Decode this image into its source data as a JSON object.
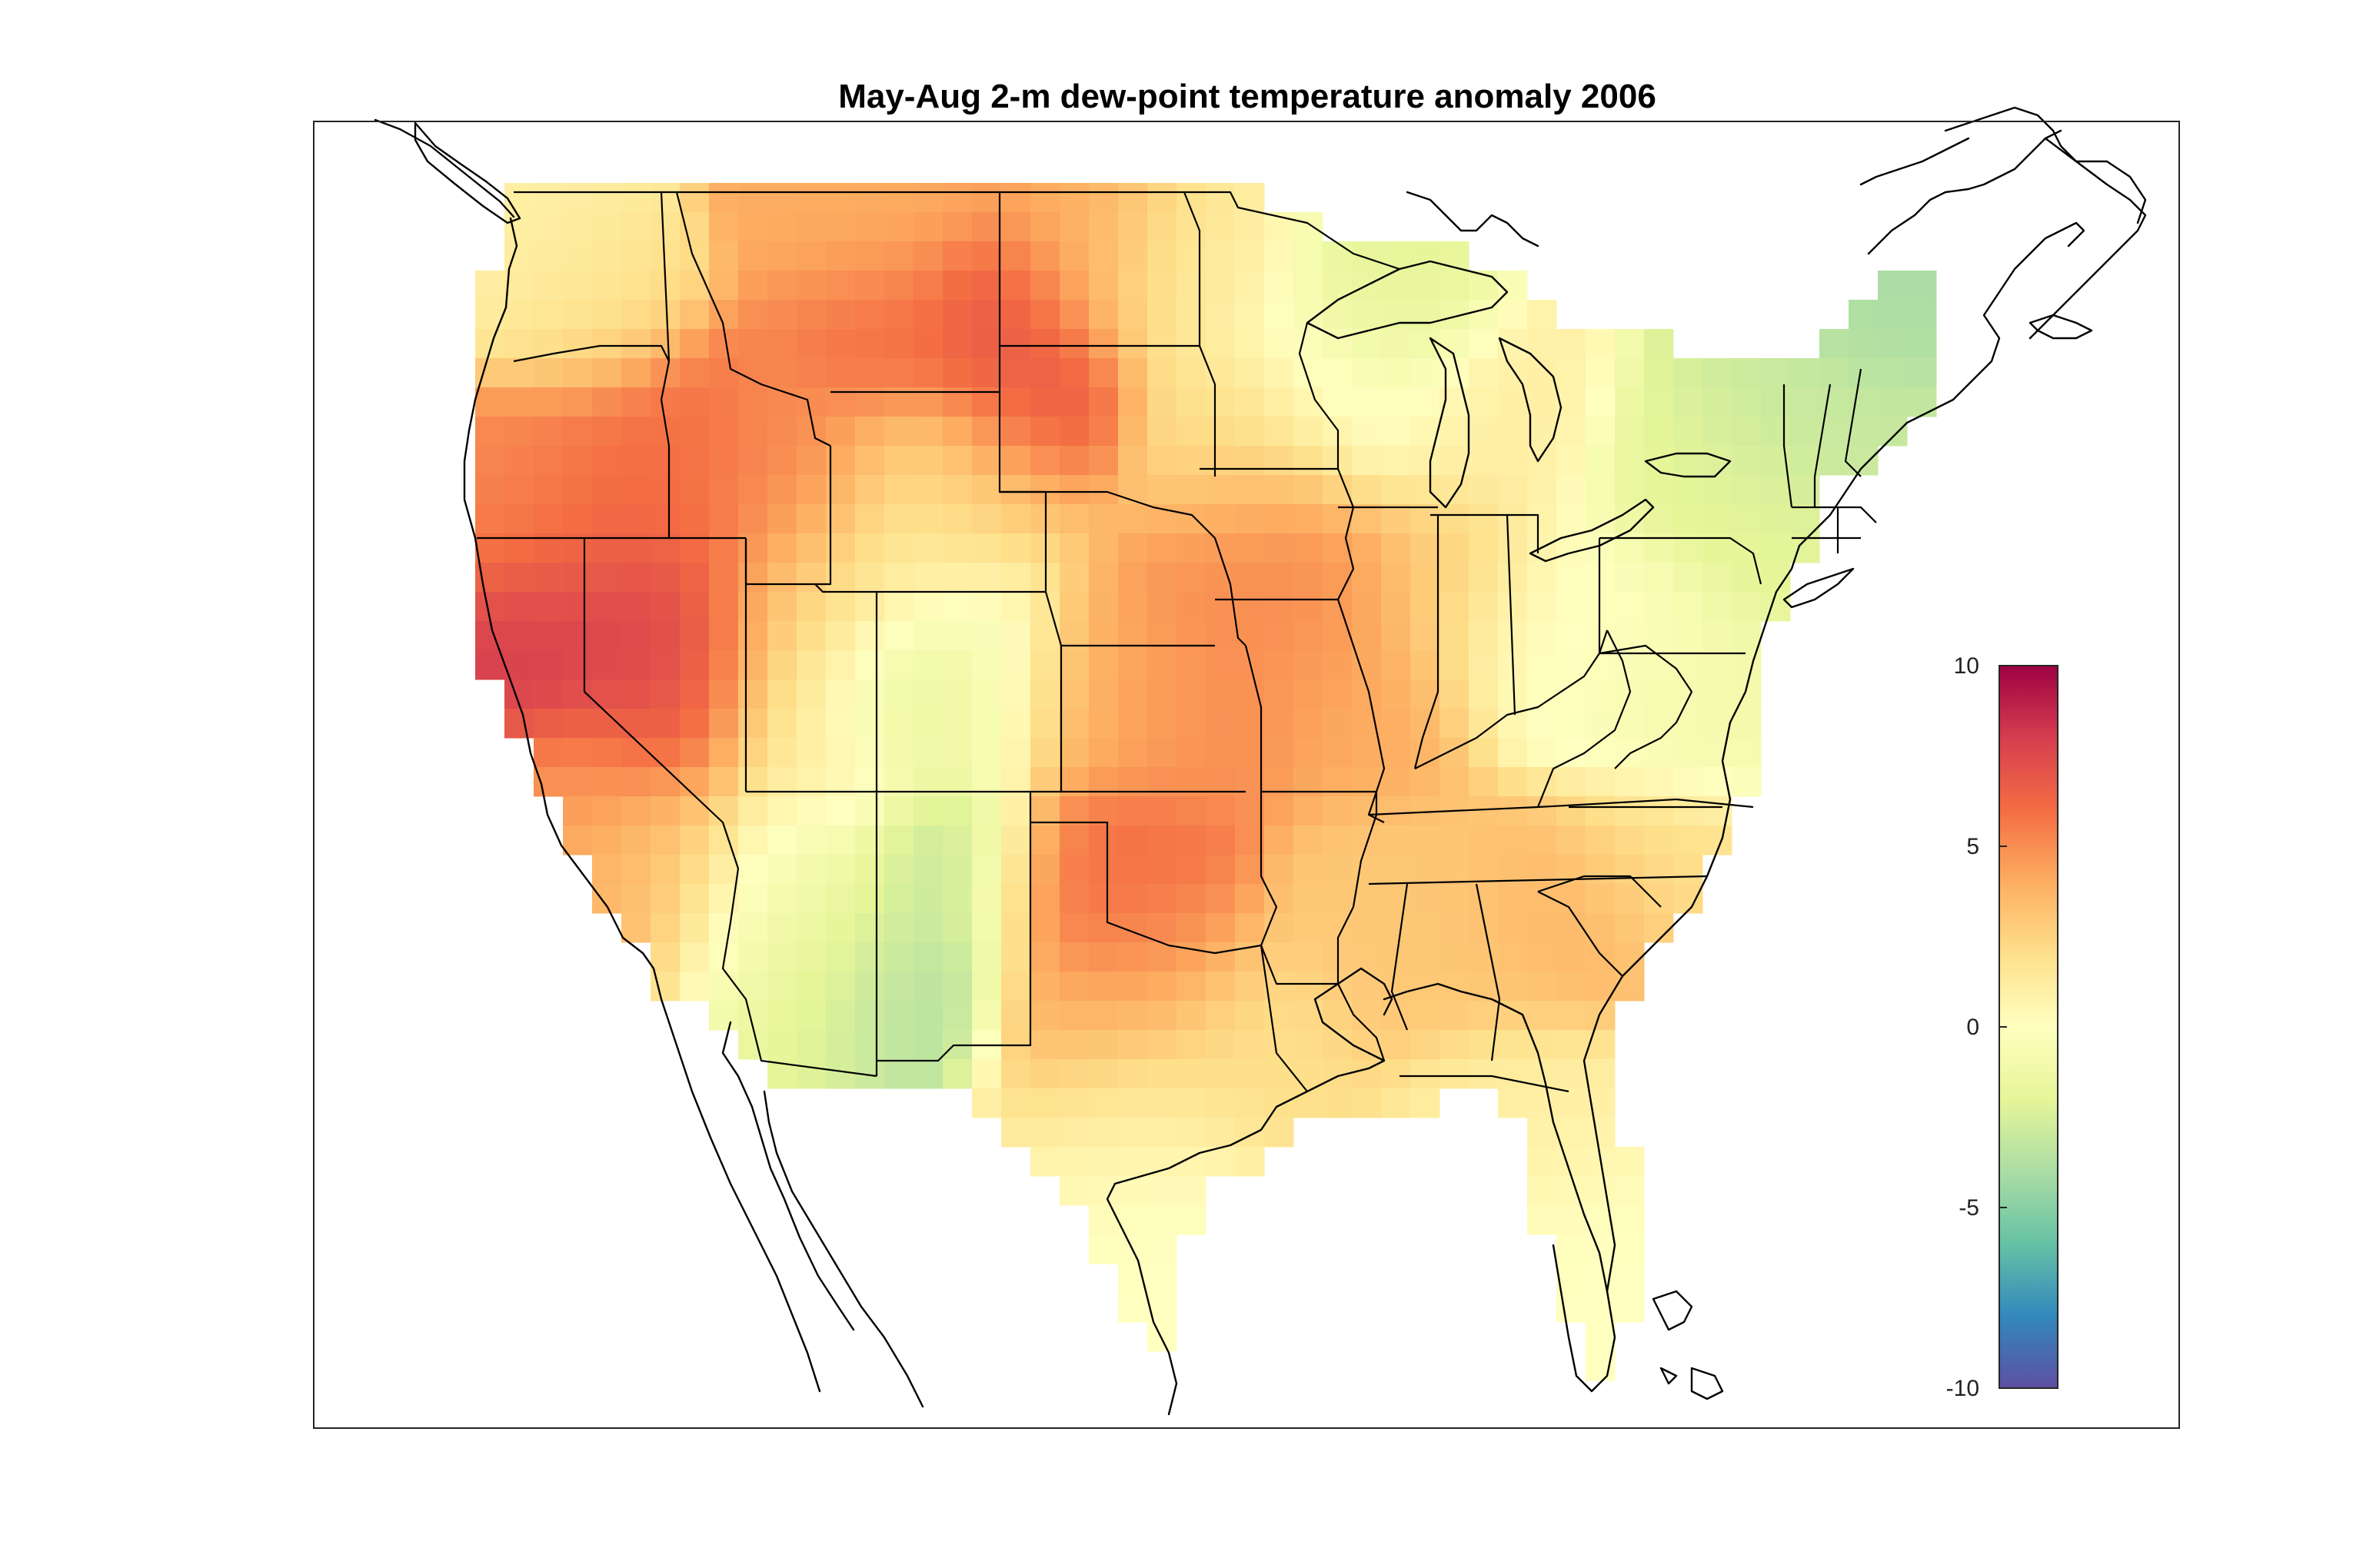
{
  "title": "May-Aug 2-m dew-point temperature anomaly 2006",
  "colorbar": {
    "min": -10,
    "max": 10,
    "ticks": [
      {
        "value": 10,
        "label": "10"
      },
      {
        "value": 5,
        "label": "5"
      },
      {
        "value": 0,
        "label": "0"
      },
      {
        "value": -5,
        "label": "-5"
      },
      {
        "value": -10,
        "label": "-10"
      }
    ],
    "colormap": [
      "#5e4fa2",
      "#3288bd",
      "#66c2a5",
      "#abdda4",
      "#e6f598",
      "#ffffbf",
      "#fee08b",
      "#fdae61",
      "#f46d43",
      "#d53e4f",
      "#9e0142"
    ]
  },
  "chart_data": {
    "type": "heatmap",
    "title": "May-Aug 2-m dew-point temperature anomaly 2006",
    "region": "contiguous United States",
    "value_range": [
      -10,
      10
    ],
    "colorbar_ticks": [
      -10,
      -5,
      0,
      5,
      10
    ],
    "anomaly_regions": [
      {
        "area": "Washington",
        "value": 1
      },
      {
        "area": "Oregon",
        "value": 3
      },
      {
        "area": "northern California",
        "value": 5
      },
      {
        "area": "southern California",
        "value": 4
      },
      {
        "area": "Nevada",
        "value": 7
      },
      {
        "area": "Idaho",
        "value": 6
      },
      {
        "area": "Utah",
        "value": 1
      },
      {
        "area": "Montana",
        "value": 5
      },
      {
        "area": "Wyoming",
        "value": 3
      },
      {
        "area": "North Dakota",
        "value": 4
      },
      {
        "area": "South Dakota",
        "value": 6
      },
      {
        "area": "Nebraska",
        "value": 5
      },
      {
        "area": "Kansas",
        "value": 5
      },
      {
        "area": "Oklahoma",
        "value": 6
      },
      {
        "area": "Texas",
        "value": 2
      },
      {
        "area": "Colorado",
        "value": -1
      },
      {
        "area": "New Mexico",
        "value": -2
      },
      {
        "area": "Arizona",
        "value": -1
      },
      {
        "area": "Minnesota",
        "value": 1
      },
      {
        "area": "Wisconsin",
        "value": 0
      },
      {
        "area": "Iowa",
        "value": 5
      },
      {
        "area": "Missouri",
        "value": 4
      },
      {
        "area": "Illinois",
        "value": 3
      },
      {
        "area": "Michigan",
        "value": 1
      },
      {
        "area": "Ohio Valley",
        "value": 0
      },
      {
        "area": "Southeast",
        "value": 3
      },
      {
        "area": "Florida",
        "value": 0
      },
      {
        "area": "Mid-Atlantic",
        "value": -1
      },
      {
        "area": "New York",
        "value": -2
      },
      {
        "area": "New England",
        "value": -3
      }
    ]
  }
}
